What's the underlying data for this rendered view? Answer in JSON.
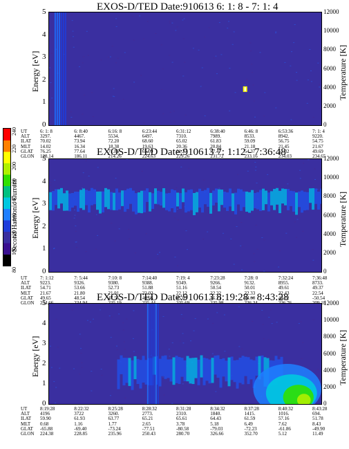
{
  "colors": {
    "background": "#3a2fa0",
    "colorbar": [
      "#000000",
      "#3a1090",
      "#3a2fa0",
      "#1f3ddb",
      "#1f7fff",
      "#00c8e0",
      "#00c080",
      "#30e000",
      "#b0f000",
      "#ffff00",
      "#ff8000",
      "#ff0000"
    ]
  },
  "colorbar": {
    "label": "Second Harmonic Current",
    "ticks": [
      "240",
      "220",
      "200",
      "180",
      "160",
      "140",
      "120",
      "100",
      "80"
    ]
  },
  "panels": [
    {
      "title": "EXOS-D/TED   Date:910613  6: 1: 8 - 7: 1: 4",
      "ylabel_left": "Energy [eV]",
      "ylabel_right": "Temperature [K]",
      "y_ticks_left": [
        "5",
        "4",
        "3",
        "2",
        "1",
        "0"
      ],
      "y_ticks_right": [
        "12000",
        "10000",
        "8000",
        "6000",
        "4000",
        "2000",
        "0"
      ],
      "row_labels": [
        "UT",
        "ALT",
        "ILAT",
        "MLT",
        "GLAT",
        "GLON"
      ],
      "columns": [
        [
          "6: 1: 8",
          "3297.",
          "70.02",
          "14.02",
          "76.25",
          "128.14"
        ],
        [
          "6: 8:40",
          "4467.",
          "73.94",
          "16.34",
          "77.64",
          "186.11"
        ],
        [
          "6:16: 8",
          "5534.",
          "72.20",
          "18.38",
          "71.86",
          "214.26"
        ],
        [
          "6:23:44",
          "6497.",
          "68.60",
          "19.63",
          "65.99",
          "224.63"
        ],
        [
          "6:31:12",
          "7310.",
          "65.02",
          "20.36",
          "61.27",
          "229.26"
        ],
        [
          "6:38:40",
          "7989.",
          "61.83",
          "20.84",
          "57.47",
          "231.72"
        ],
        [
          "6:46: 8",
          "8533.",
          "59.09",
          "21.18",
          "54.37",
          "233.16"
        ],
        [
          "6:53:36",
          "8942.",
          "56.75",
          "21.45",
          "51.82",
          "234.03"
        ],
        [
          "7: 1: 4",
          "9220.",
          "54.75",
          "21.67",
          "49.69",
          "234.65"
        ]
      ]
    },
    {
      "title": "EXOS-D/TED   Date:910613  7: 1:12 - 7:36:48",
      "ylabel_left": "Energy [eV]",
      "ylabel_right": "Temperature [K]",
      "y_ticks_left": [
        "5",
        "4",
        "3",
        "2",
        "1",
        "0"
      ],
      "y_ticks_right": [
        "12000",
        "10000",
        "8000",
        "6000",
        "4000",
        "2000",
        "0"
      ],
      "row_labels": [
        "UT",
        "ALT",
        "ILAT",
        "MLT",
        "GLAT",
        "GLON"
      ],
      "columns": [
        [
          "7: 1:12",
          "9223.",
          "54.71",
          "21.67",
          "49.65",
          "234.66"
        ],
        [
          "7: 5:44",
          "9326.",
          "53.66",
          "21.80",
          "48.54",
          "234.94"
        ],
        [
          "7:10: 8",
          "9380.",
          "52.73",
          "21.91",
          "47.56",
          "235.19"
        ],
        [
          "7:14:40",
          "9388.",
          "51.88",
          "22.02",
          "46.66",
          "235.44"
        ],
        [
          "7:19: 4",
          "9349.",
          "51.16",
          "22.12",
          "45.89",
          "235.69"
        ],
        [
          "7:23:28",
          "9266.",
          "50.54",
          "22.22",
          "45.21",
          "235.98"
        ],
        [
          "7:28: 0",
          "9132.",
          "50.01",
          "22.33",
          "44.60",
          "236.34"
        ],
        [
          "7:32:24",
          "8955.",
          "49.61",
          "22.43",
          "44.12",
          "236.76"
        ],
        [
          "7:36:48",
          "8733.",
          "49.37",
          "22.54",
          "-50.54",
          "209.18"
        ]
      ]
    },
    {
      "title": "EXOS-D/TED   Date:910613  8:19:28 - 8:43:28",
      "ylabel_left": "Energy [eV]",
      "ylabel_right": "Temperature [K]",
      "y_ticks_left": [
        "5",
        "4",
        "3",
        "2",
        "1",
        "0"
      ],
      "y_ticks_right": [
        "12000",
        "10000",
        "8000",
        "6000",
        "4000",
        "2000",
        "0"
      ],
      "row_labels": [
        "UT",
        "ALT",
        "ILAT",
        "MLT",
        "GLAT",
        "GLON"
      ],
      "columns": [
        [
          "8:19:28",
          "4196",
          "59.90",
          "0.68",
          "-65.88",
          "224.38"
        ],
        [
          "8:22:32",
          "3722",
          "61.93",
          "1.16",
          "-69.40",
          "228.85"
        ],
        [
          "8:25:28",
          "3260.",
          "63.77",
          "1.77",
          "-73.24",
          "235.96"
        ],
        [
          "8:28:32",
          "2773.",
          "65.21",
          "2.65",
          "-77.51",
          "250.43"
        ],
        [
          "8:31:28",
          "2310.",
          "65.61",
          "3.78",
          "-80.58",
          "280.70"
        ],
        [
          "8:34:32",
          "1840.",
          "64.43",
          "5.18",
          "-79.03",
          "326.66"
        ],
        [
          "8:37:28",
          "1415.",
          "61.59",
          "6.49",
          "-72.23",
          "352.70"
        ],
        [
          "8:40:32",
          "1016.",
          "57.16",
          "7.62",
          "-61.86",
          "5.12"
        ],
        [
          "8:43:28",
          "694.",
          "51.78",
          "8.43",
          "-49.90",
          "11.49"
        ]
      ]
    }
  ],
  "chart_data": [
    {
      "type": "heatmap",
      "title": "EXOS-D/TED   Date:910613  6: 1: 8 - 7: 1: 4",
      "xlabel": "UT",
      "ylabel": "Energy [eV]",
      "ylabel_right": "Temperature [K]",
      "ylim": [
        0,
        5
      ],
      "ylim_right": [
        0,
        12000
      ],
      "x_tick_labels": [
        "6: 1: 8",
        "6: 8:40",
        "6:16: 8",
        "6:23:44",
        "6:31:12",
        "6:38:40",
        "6:46: 8",
        "6:53:36",
        "7: 1: 4"
      ],
      "features": [
        {
          "kind": "streak",
          "x_frac": [
            0.02,
            0.06
          ],
          "y_eV": [
            0,
            5
          ],
          "level": 140
        },
        {
          "kind": "spot",
          "x_frac": 0.72,
          "y_eV": 1.6,
          "level": 240
        }
      ]
    },
    {
      "type": "heatmap",
      "title": "EXOS-D/TED   Date:910613  7: 1:12 - 7:36:48",
      "xlabel": "UT",
      "ylabel": "Energy [eV]",
      "ylabel_right": "Temperature [K]",
      "ylim": [
        0,
        5
      ],
      "ylim_right": [
        0,
        12000
      ],
      "x_tick_labels": [
        "7: 1:12",
        "7: 5:44",
        "7:10: 8",
        "7:14:40",
        "7:19: 4",
        "7:23:28",
        "7:28: 0",
        "7:32:24",
        "7:36:48"
      ],
      "features": [
        {
          "kind": "band",
          "x_frac": [
            0,
            1
          ],
          "y_eV": [
            2.6,
            3.6
          ],
          "level": 130
        }
      ]
    },
    {
      "type": "heatmap",
      "title": "EXOS-D/TED   Date:910613  8:19:28 - 8:43:28",
      "xlabel": "UT",
      "ylabel": "Energy [eV]",
      "ylabel_right": "Temperature [K]",
      "ylim": [
        0,
        5
      ],
      "ylim_right": [
        0,
        12000
      ],
      "x_tick_labels": [
        "8:19:28",
        "8:22:32",
        "8:25:28",
        "8:28:32",
        "8:31:28",
        "8:34:32",
        "8:37:28",
        "8:40:32",
        "8:43:28"
      ],
      "features": [
        {
          "kind": "band",
          "x_frac": [
            0.25,
            0.85
          ],
          "y_eV": [
            0.8,
            2.3
          ],
          "level": 150
        },
        {
          "kind": "blob",
          "x_frac": [
            0.75,
            1.0
          ],
          "y_eV": [
            0,
            1.5
          ],
          "level": 190
        },
        {
          "kind": "streak",
          "x_frac": [
            0.36,
            0.4
          ],
          "y_eV": [
            0,
            5
          ],
          "level": 140
        }
      ]
    }
  ]
}
